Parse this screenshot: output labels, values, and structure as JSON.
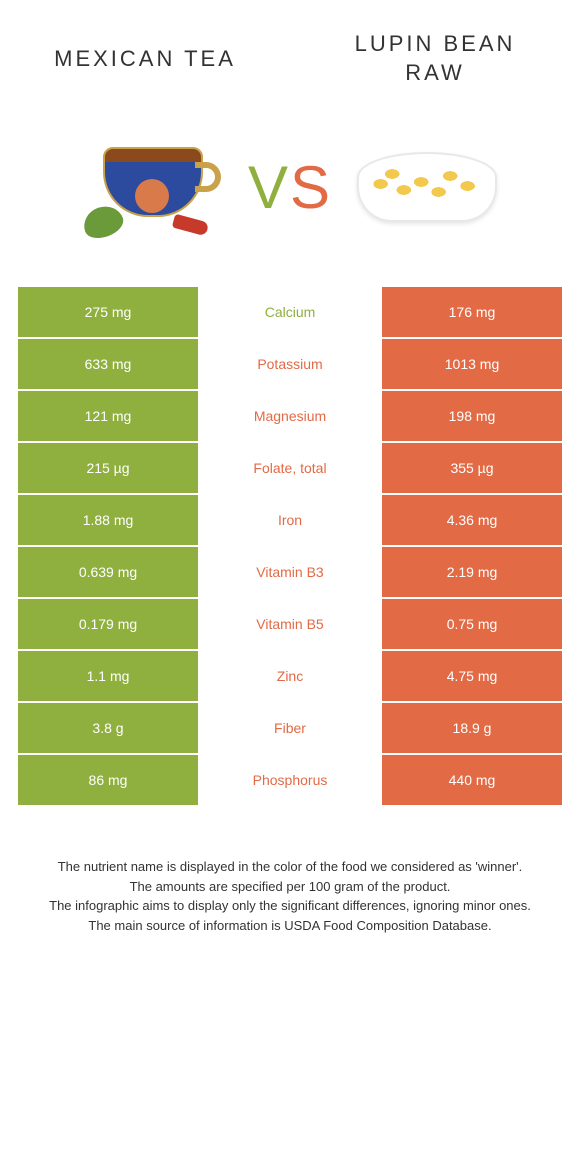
{
  "header": {
    "left_title": "MEXICAN TEA",
    "right_title_line1": "LUPIN BEAN",
    "right_title_line2": "RAW"
  },
  "vs": {
    "v": "V",
    "s": "S"
  },
  "colors": {
    "left": "#8fb03e",
    "right": "#e26a45",
    "background": "#ffffff"
  },
  "nutrients": [
    {
      "label": "Calcium",
      "left": "275 mg",
      "right": "176 mg",
      "winner": "left"
    },
    {
      "label": "Potassium",
      "left": "633 mg",
      "right": "1013 mg",
      "winner": "right"
    },
    {
      "label": "Magnesium",
      "left": "121 mg",
      "right": "198 mg",
      "winner": "right"
    },
    {
      "label": "Folate, total",
      "left": "215 µg",
      "right": "355 µg",
      "winner": "right"
    },
    {
      "label": "Iron",
      "left": "1.88 mg",
      "right": "4.36 mg",
      "winner": "right"
    },
    {
      "label": "Vitamin B3",
      "left": "0.639 mg",
      "right": "2.19 mg",
      "winner": "right"
    },
    {
      "label": "Vitamin B5",
      "left": "0.179 mg",
      "right": "0.75 mg",
      "winner": "right"
    },
    {
      "label": "Zinc",
      "left": "1.1 mg",
      "right": "4.75 mg",
      "winner": "right"
    },
    {
      "label": "Fiber",
      "left": "3.8 g",
      "right": "18.9 g",
      "winner": "right"
    },
    {
      "label": "Phosphorus",
      "left": "86 mg",
      "right": "440 mg",
      "winner": "right"
    }
  ],
  "footer": {
    "line1": "The nutrient name is displayed in the color of the food we considered as 'winner'.",
    "line2": "The amounts are specified per 100 gram of the product.",
    "line3": "The infographic aims to display only the significant differences, ignoring minor ones.",
    "line4": "The main source of information is USDA Food Composition Database."
  }
}
